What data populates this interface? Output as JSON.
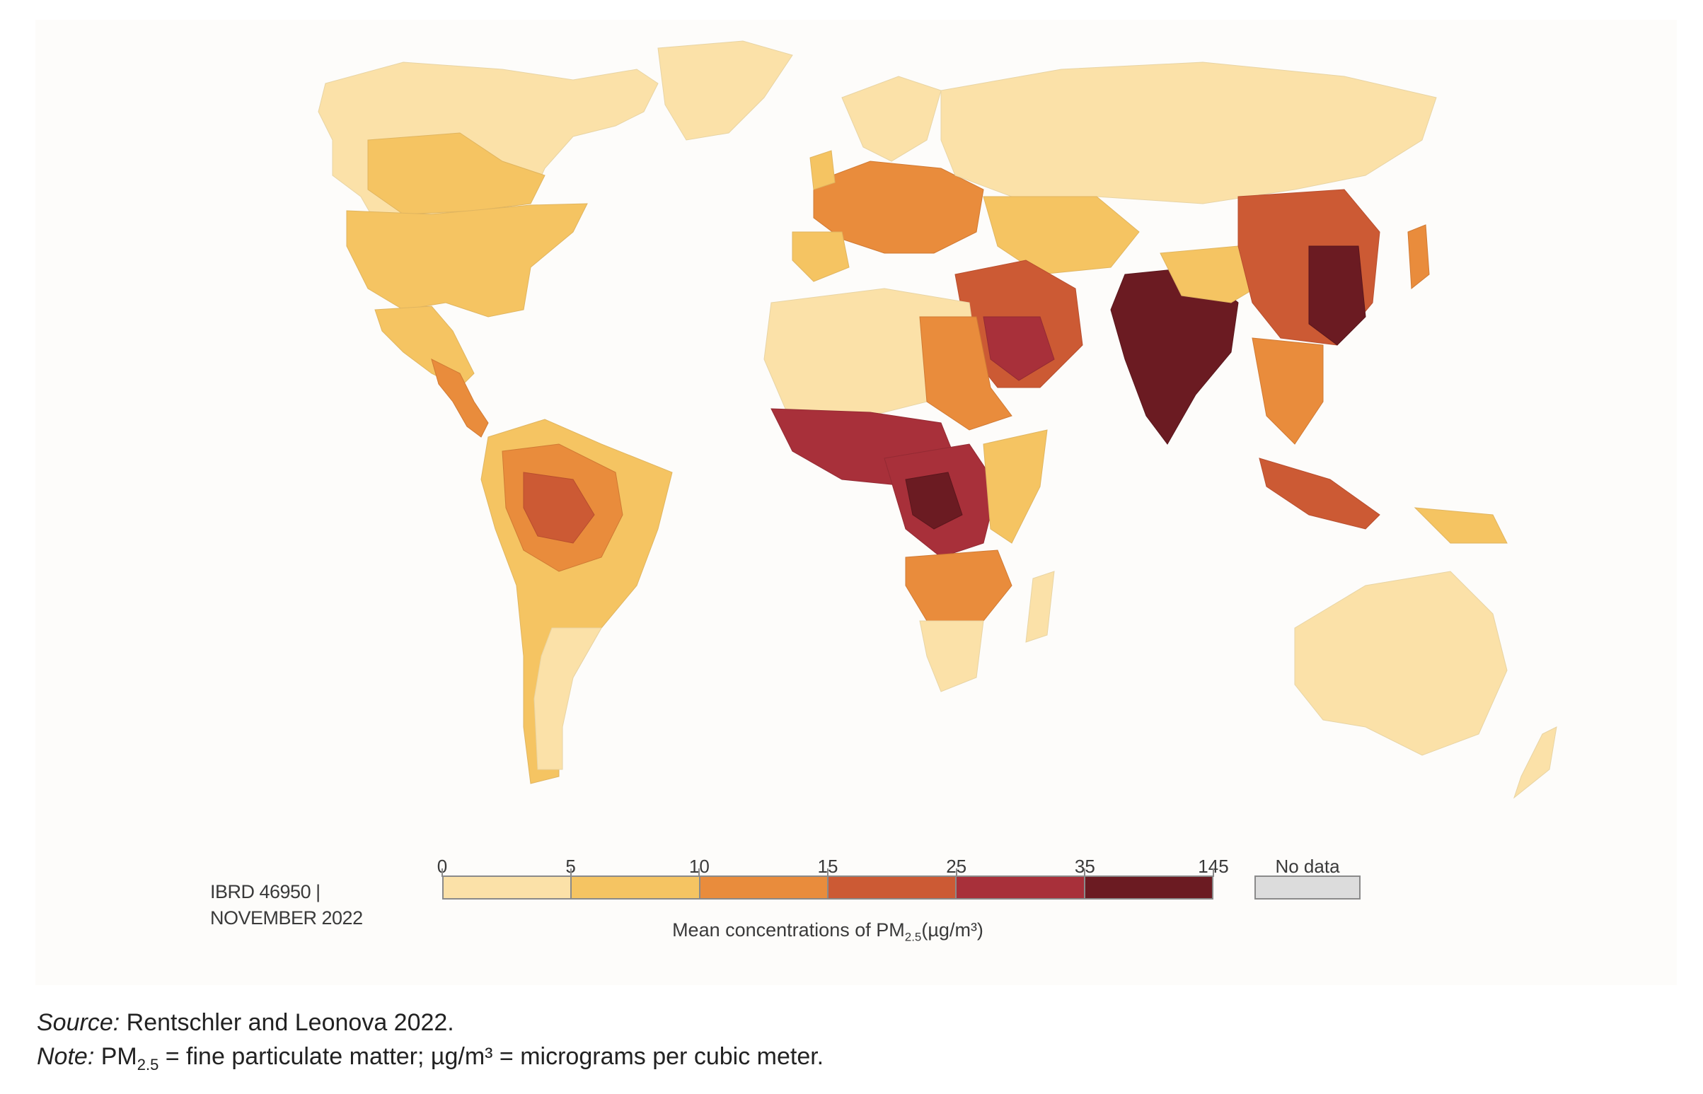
{
  "map": {
    "id_line1": "IBRD 46950 |",
    "id_line2": "NOVEMBER 2022",
    "ocean_color": "#fdfcfa",
    "legend": {
      "ticks": [
        "0",
        "5",
        "10",
        "15",
        "25",
        "35",
        "145"
      ],
      "classes": [
        {
          "range": "0–5",
          "color": "#fbe1a8"
        },
        {
          "range": "5–10",
          "color": "#f5c462"
        },
        {
          "range": "10–15",
          "color": "#e98c3c"
        },
        {
          "range": "15–25",
          "color": "#cc5a34"
        },
        {
          "range": "25–35",
          "color": "#a8303a"
        },
        {
          "range": "35–145",
          "color": "#6b1b22"
        }
      ],
      "no_data_label": "No data",
      "no_data_color": "#dcdcdc",
      "title_main": "Mean concentrations of PM",
      "title_sub": "2.5",
      "title_unit": "(µg/m³)"
    }
  },
  "caption": {
    "source_label": "Source:",
    "source_text": " Rentschler and Leonova 2022.",
    "note_label": "Note:",
    "note_pm": " PM",
    "note_sub": "2.5",
    "note_text": " = fine particulate matter; µg/m³ = micrograms per cubic meter."
  }
}
